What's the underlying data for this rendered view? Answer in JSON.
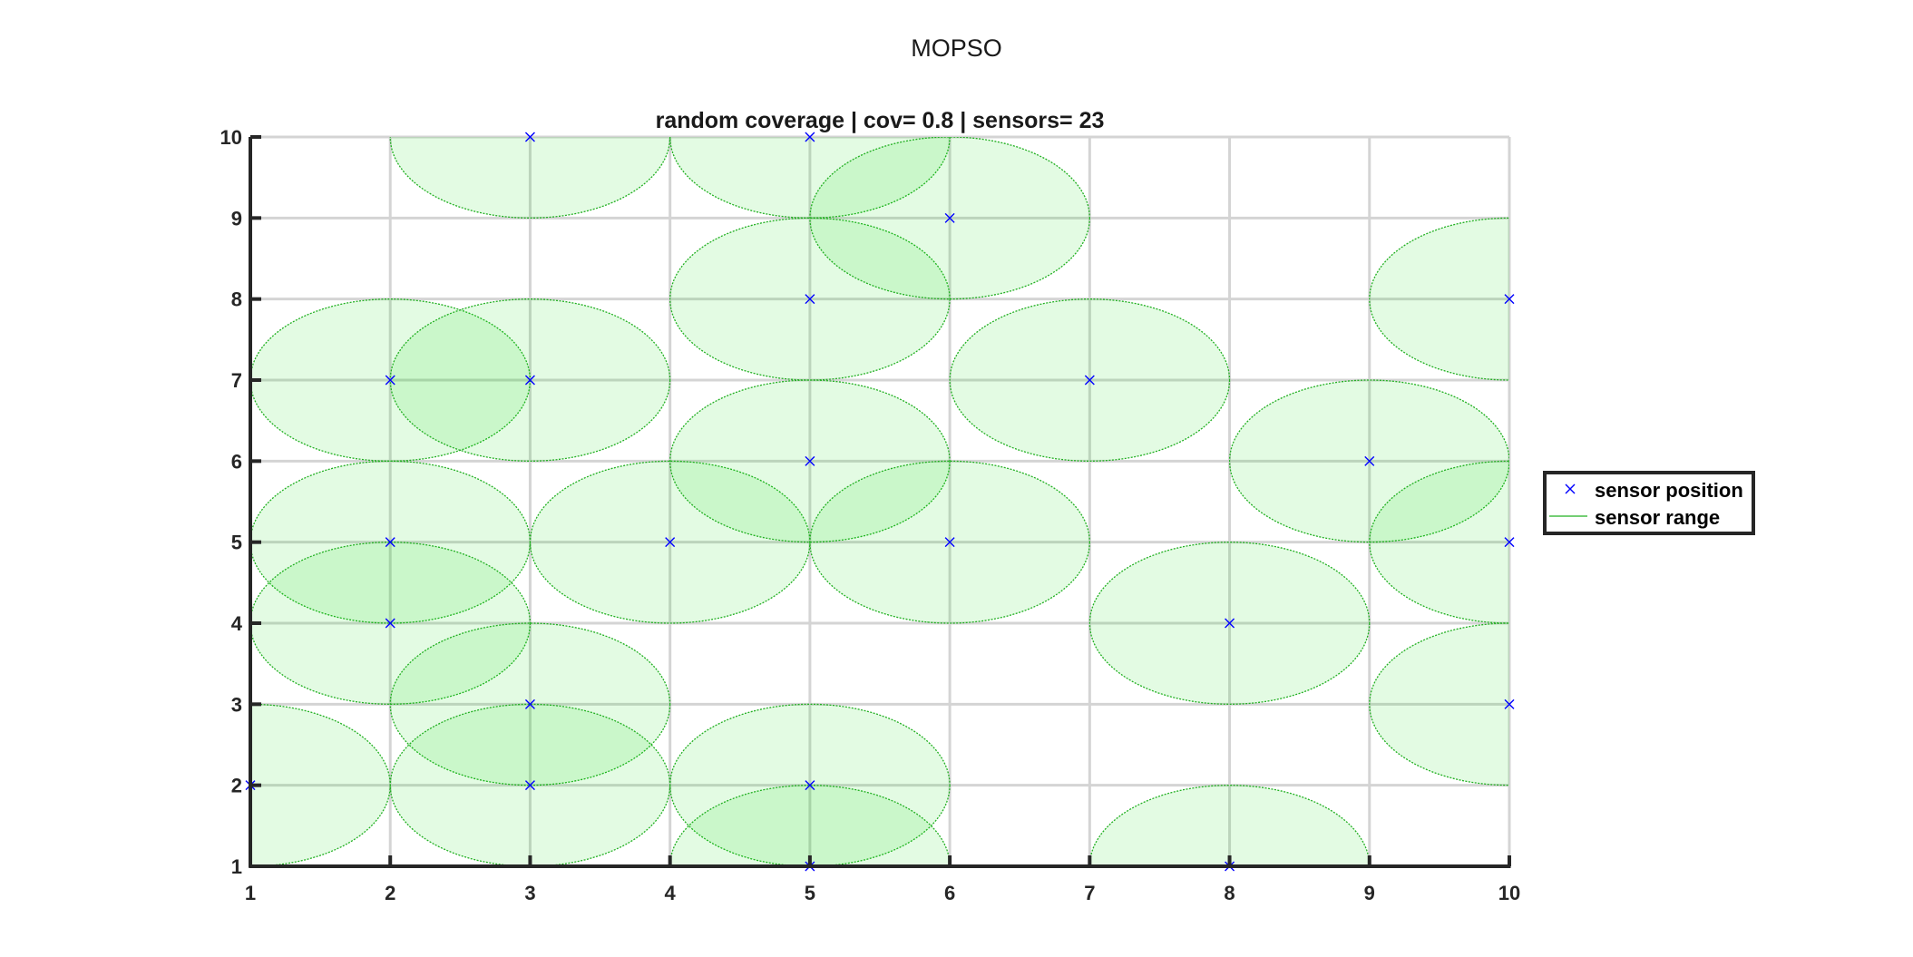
{
  "window": {
    "title": "MOPSO"
  },
  "colors": {
    "marker": "#0000ff",
    "range_stroke": "#22b022",
    "range_fill": "#00dd00",
    "grid": "#d4d4d4",
    "axis": "#262626"
  },
  "chart_data": {
    "type": "scatter",
    "title": "random coverage | cov= 0.8 | sensors= 23",
    "xlabel": "",
    "ylabel": "",
    "xlim": [
      1,
      10
    ],
    "ylim": [
      1,
      10
    ],
    "x_ticks": [
      "1",
      "2",
      "3",
      "4",
      "5",
      "6",
      "7",
      "8",
      "9",
      "10"
    ],
    "y_ticks": [
      "1",
      "2",
      "3",
      "4",
      "5",
      "6",
      "7",
      "8",
      "9",
      "10"
    ],
    "grid": true,
    "sensor_range": 1,
    "legend": {
      "placement": "outside-right",
      "entries": [
        "sensor position",
        "sensor range"
      ]
    },
    "series": [
      {
        "name": "sensor position",
        "marker": "x",
        "points": [
          [
            1,
            2
          ],
          [
            2,
            7
          ],
          [
            2,
            5
          ],
          [
            2,
            4
          ],
          [
            3,
            10
          ],
          [
            3,
            7
          ],
          [
            3,
            3
          ],
          [
            3,
            2
          ],
          [
            4,
            5
          ],
          [
            5,
            10
          ],
          [
            5,
            8
          ],
          [
            5,
            6
          ],
          [
            5,
            2
          ],
          [
            5,
            1
          ],
          [
            6,
            9
          ],
          [
            6,
            5
          ],
          [
            7,
            7
          ],
          [
            8,
            4
          ],
          [
            8,
            1
          ],
          [
            9,
            6
          ],
          [
            10,
            8
          ],
          [
            10,
            5
          ],
          [
            10,
            3
          ]
        ]
      },
      {
        "name": "sensor range",
        "shape": "circle"
      }
    ]
  }
}
